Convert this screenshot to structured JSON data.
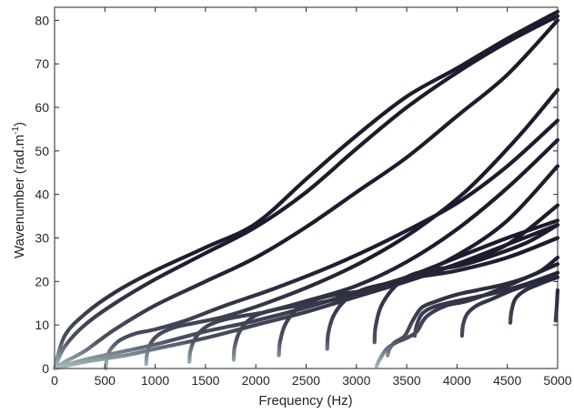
{
  "chart_data": {
    "type": "line",
    "title": "",
    "xlabel": "Frequency (Hz)",
    "ylabel": "Wavenumber (rad.m",
    "ylabel_superscript": "-1",
    "ylabel_suffix": ")",
    "xlim": [
      0,
      5000
    ],
    "ylim": [
      0,
      83
    ],
    "xticks": [
      0,
      500,
      1000,
      1500,
      2000,
      2500,
      3000,
      3500,
      4000,
      4500,
      5000
    ],
    "yticks": [
      0,
      10,
      20,
      30,
      40,
      50,
      60,
      70,
      80
    ],
    "grid": false,
    "legend": "none",
    "colors": {
      "dark": "#1c1c2e",
      "mid": "#4a4e60",
      "light": "#a9c0c2"
    },
    "series": [
      {
        "x": [
          0,
          100,
          300,
          600,
          1000,
          1500,
          2000,
          2500,
          3000,
          3500,
          4000,
          4500,
          5000
        ],
        "values": [
          0,
          7.5,
          12.5,
          17.5,
          22.5,
          27.8,
          33.3,
          43.5,
          53.5,
          62.5,
          69.0,
          75.8,
          82.0
        ]
      },
      {
        "x": [
          0,
          100,
          300,
          600,
          1000,
          1500,
          2000,
          2500,
          3000,
          3500,
          4000,
          4500,
          5000
        ],
        "values": [
          0,
          5.0,
          10.0,
          15.0,
          20.5,
          26.5,
          32.5,
          40.5,
          50.5,
          60.0,
          68.0,
          75.0,
          81.0
        ]
      },
      {
        "x": [
          0,
          100,
          300,
          600,
          1000,
          1500,
          2000,
          2500,
          3000,
          3500,
          4000,
          4500,
          5000
        ],
        "values": [
          0,
          1.5,
          4.0,
          9.0,
          14.5,
          20.0,
          25.5,
          32.5,
          40.5,
          48.5,
          58.0,
          67.5,
          80.0
        ]
      },
      {
        "x": [
          0,
          300,
          700,
          1000,
          1500,
          2000,
          2500,
          3000,
          3500,
          4000,
          4500,
          5000
        ],
        "values": [
          0,
          2.0,
          4.0,
          5.5,
          8.5,
          11.0,
          14.0,
          17.5,
          21.0,
          25.5,
          30.0,
          34.0
        ]
      },
      {
        "x": [
          0,
          300,
          700,
          1000,
          1500,
          2000,
          2500,
          3000,
          3500,
          4000,
          4500,
          5000
        ],
        "values": [
          0,
          1.5,
          3.0,
          4.5,
          7.0,
          10.0,
          13.0,
          16.5,
          20.0,
          24.0,
          28.5,
          33.0
        ]
      },
      {
        "x": [
          510,
          520,
          560,
          650,
          800,
          1000,
          1300,
          1700,
          2200,
          2800,
          3400,
          4000,
          4500,
          5000
        ],
        "values": [
          0,
          2.5,
          4.5,
          6.5,
          8.0,
          9.0,
          11.0,
          14.5,
          18.5,
          24.0,
          30.5,
          38.0,
          46.5,
          57.0
        ]
      },
      {
        "x": [
          910,
          920,
          960,
          1050,
          1200,
          1400,
          1700,
          2100,
          2600,
          3100,
          3600,
          4100,
          4600,
          5000
        ],
        "values": [
          1.0,
          3.5,
          6.0,
          8.0,
          9.5,
          10.5,
          12.0,
          15.0,
          19.5,
          25.0,
          32.0,
          41.0,
          53.0,
          64.0
        ]
      },
      {
        "x": [
          1340,
          1350,
          1400,
          1500,
          1650,
          1850,
          2100,
          2500,
          3000,
          3500,
          4000,
          4500,
          5000
        ],
        "values": [
          1.5,
          4.0,
          7.0,
          9.5,
          11.0,
          12.0,
          13.0,
          15.5,
          19.0,
          24.5,
          32.0,
          41.5,
          52.5
        ]
      },
      {
        "x": [
          1780,
          1790,
          1840,
          1950,
          2100,
          2300,
          2600,
          3000,
          3500,
          4000,
          4500,
          5000
        ],
        "values": [
          2.0,
          5.0,
          8.5,
          11.5,
          13.0,
          14.0,
          15.0,
          17.0,
          20.5,
          26.0,
          34.0,
          46.5
        ]
      },
      {
        "x": [
          2230,
          2240,
          2290,
          2400,
          2550,
          2800,
          3100,
          3500,
          4000,
          4500,
          5000
        ],
        "values": [
          3.0,
          6.0,
          10.0,
          13.5,
          15.5,
          17.0,
          18.0,
          20.5,
          24.0,
          28.5,
          37.5
        ]
      },
      {
        "x": [
          2710,
          2720,
          2770,
          2880,
          3050,
          3300,
          3600,
          4000,
          4500,
          5000
        ],
        "values": [
          4.5,
          8.0,
          12.0,
          15.5,
          18.0,
          19.5,
          21.0,
          22.5,
          25.5,
          30.0
        ]
      },
      {
        "x": [
          3180,
          3190,
          3240,
          3350,
          3500,
          3700,
          4000,
          4300,
          4700,
          5000
        ],
        "values": [
          6.0,
          9.5,
          14.0,
          18.0,
          21.0,
          22.5,
          23.5,
          25.5,
          29.0,
          33.0
        ]
      },
      {
        "x": [
          3200,
          3230,
          3300,
          3400,
          3500,
          3600,
          3700,
          3900,
          4100,
          4400,
          4700,
          5000
        ],
        "values": [
          0.5,
          2.0,
          4.5,
          6.0,
          7.0,
          8.5,
          12.0,
          14.5,
          15.5,
          18.0,
          21.0,
          24.0
        ]
      },
      {
        "x": [
          3310,
          3330,
          3380,
          3480,
          3560,
          3650,
          3800,
          4000,
          4200,
          4500,
          4800,
          5000
        ],
        "values": [
          3.0,
          4.5,
          6.0,
          7.5,
          11.0,
          14.0,
          15.5,
          17.0,
          18.0,
          19.5,
          22.0,
          25.5
        ]
      },
      {
        "x": [
          3580,
          3600,
          3650,
          3750,
          3900,
          4100,
          4400,
          4700,
          5000
        ],
        "values": [
          7.5,
          10.0,
          12.5,
          14.0,
          15.0,
          16.0,
          17.5,
          19.5,
          22.0
        ]
      },
      {
        "x": [
          4050,
          4060,
          4100,
          4200,
          4350,
          4550,
          4800,
          5000
        ],
        "values": [
          7.5,
          10.0,
          12.5,
          14.5,
          16.0,
          18.0,
          20.0,
          22.0
        ]
      },
      {
        "x": [
          4530,
          4540,
          4580,
          4680,
          4830,
          5000
        ],
        "values": [
          10.5,
          13.0,
          16.0,
          18.0,
          19.5,
          21.0
        ]
      },
      {
        "x": [
          4980,
          4990,
          5000
        ],
        "values": [
          11.0,
          14.0,
          18.0
        ]
      }
    ]
  }
}
